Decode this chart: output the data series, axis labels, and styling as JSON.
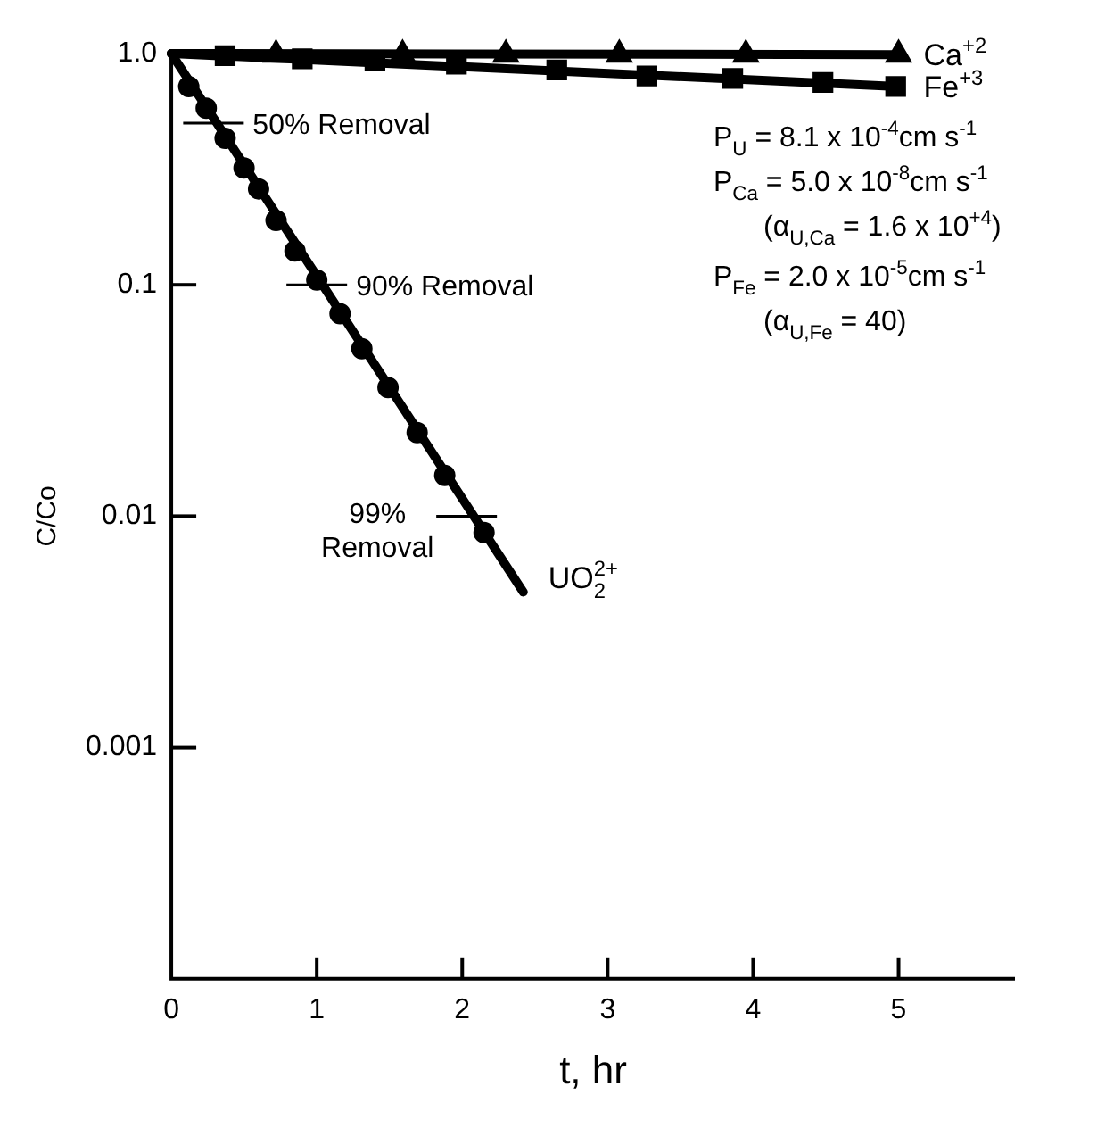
{
  "chart_data": {
    "type": "line",
    "xlabel": "t, hr",
    "ylabel": "C/Co",
    "log": "y",
    "grid": false,
    "legend": false,
    "xlim": [
      0,
      5.8
    ],
    "xticks": [
      0,
      1,
      2,
      3,
      4,
      5
    ],
    "ylim": [
      0.0001,
      1
    ],
    "yticks": [
      {
        "value": 1,
        "label": "1.0"
      },
      0.1,
      0.01,
      0.001
    ],
    "series": [
      {
        "name": "Ca$^{+2}$",
        "color": "#000000",
        "marker": "none",
        "line_style": "solid",
        "x": [
          0,
          5.0
        ],
        "values": [
          1,
          0.99
        ]
      },
      {
        "type": "scatter",
        "color": "#000000",
        "marker": "triangle",
        "x": [
          0.72,
          1.59,
          2.3,
          3.08,
          3.95,
          5.0
        ],
        "values": [
          0.99,
          0.99,
          0.99,
          0.99,
          0.99,
          0.99
        ]
      },
      {
        "name": "Fe$^{+3}$",
        "color": "#000000",
        "marker": "none",
        "line_style": "solid",
        "x": [
          0,
          5.0
        ],
        "values": [
          1,
          0.72
        ]
      },
      {
        "type": "scatter",
        "color": "#000000",
        "marker": "square",
        "x": [
          0.37,
          0.9,
          1.4,
          1.96,
          2.65,
          3.27,
          3.86,
          4.48,
          4.98
        ],
        "values": [
          0.98,
          0.95,
          0.93,
          0.9,
          0.85,
          0.8,
          0.78,
          0.75,
          0.72
        ]
      },
      {
        "name": "UO$_{2}$$^{2+}$",
        "color": "#000000",
        "marker": "none",
        "line_style": "solid",
        "x": [
          0,
          2.42
        ],
        "values": [
          1,
          0.0047
        ]
      },
      {
        "type": "scatter",
        "color": "#000000",
        "marker": "circle",
        "x": [
          0.12,
          0.24,
          0.37,
          0.5,
          0.6,
          0.72,
          0.85,
          1.0,
          1.16,
          1.31,
          1.49,
          1.69,
          1.88,
          2.15
        ],
        "values": [
          0.72,
          0.58,
          0.43,
          0.32,
          0.26,
          0.19,
          0.14,
          0.105,
          0.075,
          0.053,
          0.036,
          0.023,
          0.015,
          0.0085
        ]
      }
    ],
    "annotations": [
      {
        "text": "50% Removal",
        "x": 0.29,
        "y": 0.5
      },
      {
        "text": "90% Removal",
        "x": 1.0,
        "y": 0.1
      },
      {
        "text": "99%\nRemoval",
        "x": 2.03,
        "y": 0.01
      },
      "P$_{U}$ = 8.1 x 10$^{-4}$cm s$^{-1}$",
      "P$_{Ca}$ = 5.0 x 10$^{-8}$cm s$^{-1}$",
      "(α$_{U,Ca}$ = 1.6 x 10$^{+4}$)",
      "P$_{Fe}$ = 2.0 x 10$^{-5}$cm s$^{-1}$",
      "(α$_{U,Fe}$ = 40)"
    ]
  }
}
